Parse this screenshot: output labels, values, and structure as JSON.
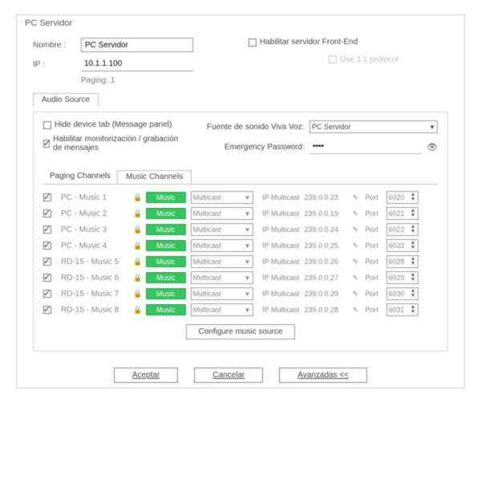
{
  "window": {
    "title": "PC Servidor"
  },
  "form": {
    "nombre_label": "Nombre :",
    "nombre_value": "PC Servidor",
    "ip_label": "IP :",
    "ip_value": "10.1.1.100",
    "paging_label": "Paging:  1"
  },
  "frontend": {
    "enable_label": "Habilitar servidor Front-End",
    "use31_label": "Use 3.1 protocol"
  },
  "audio_panel": {
    "tab_label": "Audio Source",
    "hide_device_label": "Hide device tab (Message panel)",
    "habilitar_label": "Habilitar monitorización / grabación de mensajes",
    "fuente_label": "Fuente de sonido Viva Voz:",
    "fuente_value": "PC Servidor",
    "emergency_label": "Emergency Password:",
    "emergency_value": "••••"
  },
  "tabs": {
    "paging_label": "Paging Channels",
    "music_label": "Music Channels"
  },
  "music_btn_label": "Music",
  "mode_value": "Multicast",
  "ip_multicast_label": "IP Multicast",
  "port_label": "Port",
  "channels": [
    {
      "name": "PC - Music 1",
      "ip": "239.0.0.23",
      "port": "6020"
    },
    {
      "name": "PC - Music 2",
      "ip": "239.0.0.19",
      "port": "6021"
    },
    {
      "name": "PC - Music 3",
      "ip": "239.0.0.24",
      "port": "6022"
    },
    {
      "name": "PC - Music 4",
      "ip": "239.0.0.25",
      "port": "6023"
    },
    {
      "name": "RD-15 - Music 5",
      "ip": "239.0.0.26",
      "port": "6028"
    },
    {
      "name": "RD-15 - Music 6",
      "ip": "239.0.0.27",
      "port": "6029"
    },
    {
      "name": "RD-15 - Music 7",
      "ip": "239.0.0.29",
      "port": "6030"
    },
    {
      "name": "RD-15 - Music 8",
      "ip": "239.0.0.28",
      "port": "6031"
    }
  ],
  "configure_btn": "Configure music source",
  "buttons": {
    "ok": "Aceptar",
    "cancel": "Cancelar",
    "advanced": "Avanzadas <<"
  },
  "colors": {
    "music_btn_bg": "#36c45e",
    "music_btn_border": "#2aa04b",
    "window_border": "#d0d0d0"
  }
}
